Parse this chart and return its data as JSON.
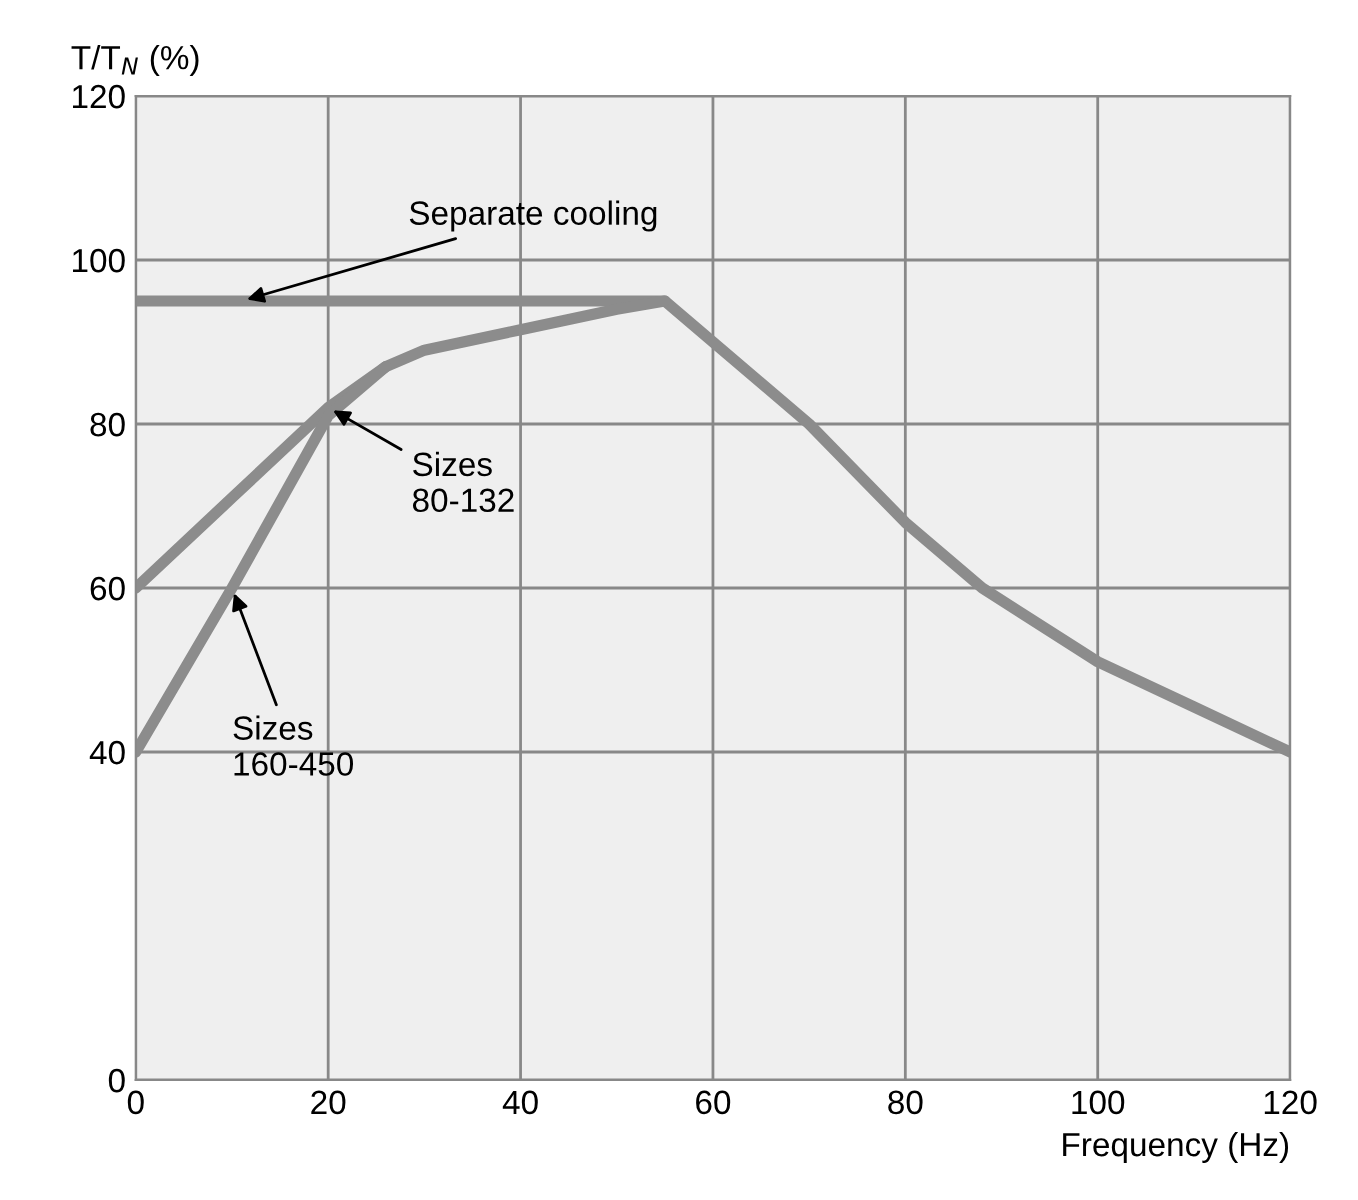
{
  "chart_data": {
    "type": "line",
    "xlabel": "Frequency (Hz)",
    "ylabel": "T/T$_{N}$ (%)",
    "xlim": [
      0,
      120
    ],
    "xticks": [
      0,
      20,
      40,
      60,
      80,
      100,
      120
    ],
    "ylim": [
      0,
      120
    ],
    "yticks": [
      0,
      40,
      60,
      80,
      100,
      120
    ],
    "grid": true,
    "legend": false,
    "series": [
      {
        "name": "Separate cooling",
        "color": "#8c8c8c",
        "x": [
          0,
          55,
          60,
          70,
          80,
          88,
          100,
          110,
          120
        ],
        "values": [
          95,
          95,
          90,
          80,
          68,
          60,
          51,
          45.5,
          40
        ]
      },
      {
        "name": "Sizes\n80-132",
        "color": "#8c8c8c",
        "x": [
          0,
          10,
          20,
          26,
          30,
          40,
          50,
          55
        ],
        "values": [
          60,
          71,
          82,
          87,
          89,
          91.5,
          94,
          95
        ]
      },
      {
        "name": "Sizes\n160-450",
        "color": "#8c8c8c",
        "x": [
          0,
          10,
          20,
          26
        ],
        "values": [
          40,
          60,
          81,
          87
        ]
      }
    ]
  }
}
